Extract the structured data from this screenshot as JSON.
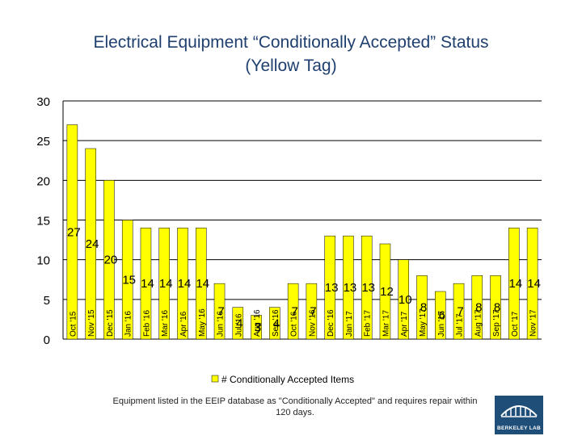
{
  "title_line1": "Electrical Equipment “Conditionally Accepted” Status",
  "title_line2": "(Yellow Tag)",
  "footnote": "Equipment listed in the EEIP database as \"Conditionally Accepted\" and requires repair within 120 days.",
  "logo_text": "BERKELEY LAB",
  "colors": {
    "bar": "#ffff00",
    "bar_stroke": "#000000",
    "title": "#1f3f6e",
    "grid": "#000000"
  },
  "chart_data": {
    "type": "bar",
    "title": "Electrical Equipment “Conditionally Accepted” Status (Yellow Tag)",
    "xlabel": "",
    "ylabel": "",
    "categories": [
      "Oct '15",
      "Nov '15",
      "Dec '15",
      "Jan '16",
      "Feb '16",
      "Mar '16",
      "Apr '16",
      "May '16",
      "Jun '16",
      "Jul '16",
      "Aug '16",
      "Sep '16",
      "Oct '16",
      "Nov '16",
      "Dec '16",
      "Jan '17",
      "Feb '17",
      "Mar '17",
      "Apr '17",
      "May '17",
      "Jun '17",
      "Jul '17",
      "Aug '17",
      "Sep '17",
      "Oct '17",
      "Nov '17"
    ],
    "series": [
      {
        "name": "# Conditionally Accepted Items",
        "values": [
          27,
          24,
          20,
          15,
          14,
          14,
          14,
          14,
          7,
          4,
          3,
          4,
          7,
          7,
          13,
          13,
          13,
          12,
          10,
          8,
          6,
          7,
          8,
          8,
          14,
          14
        ]
      }
    ],
    "ylim": [
      0,
      30
    ],
    "yticks": [
      0,
      5,
      10,
      15,
      20,
      25,
      30
    ],
    "grid": true,
    "legend_position": "bottom"
  }
}
